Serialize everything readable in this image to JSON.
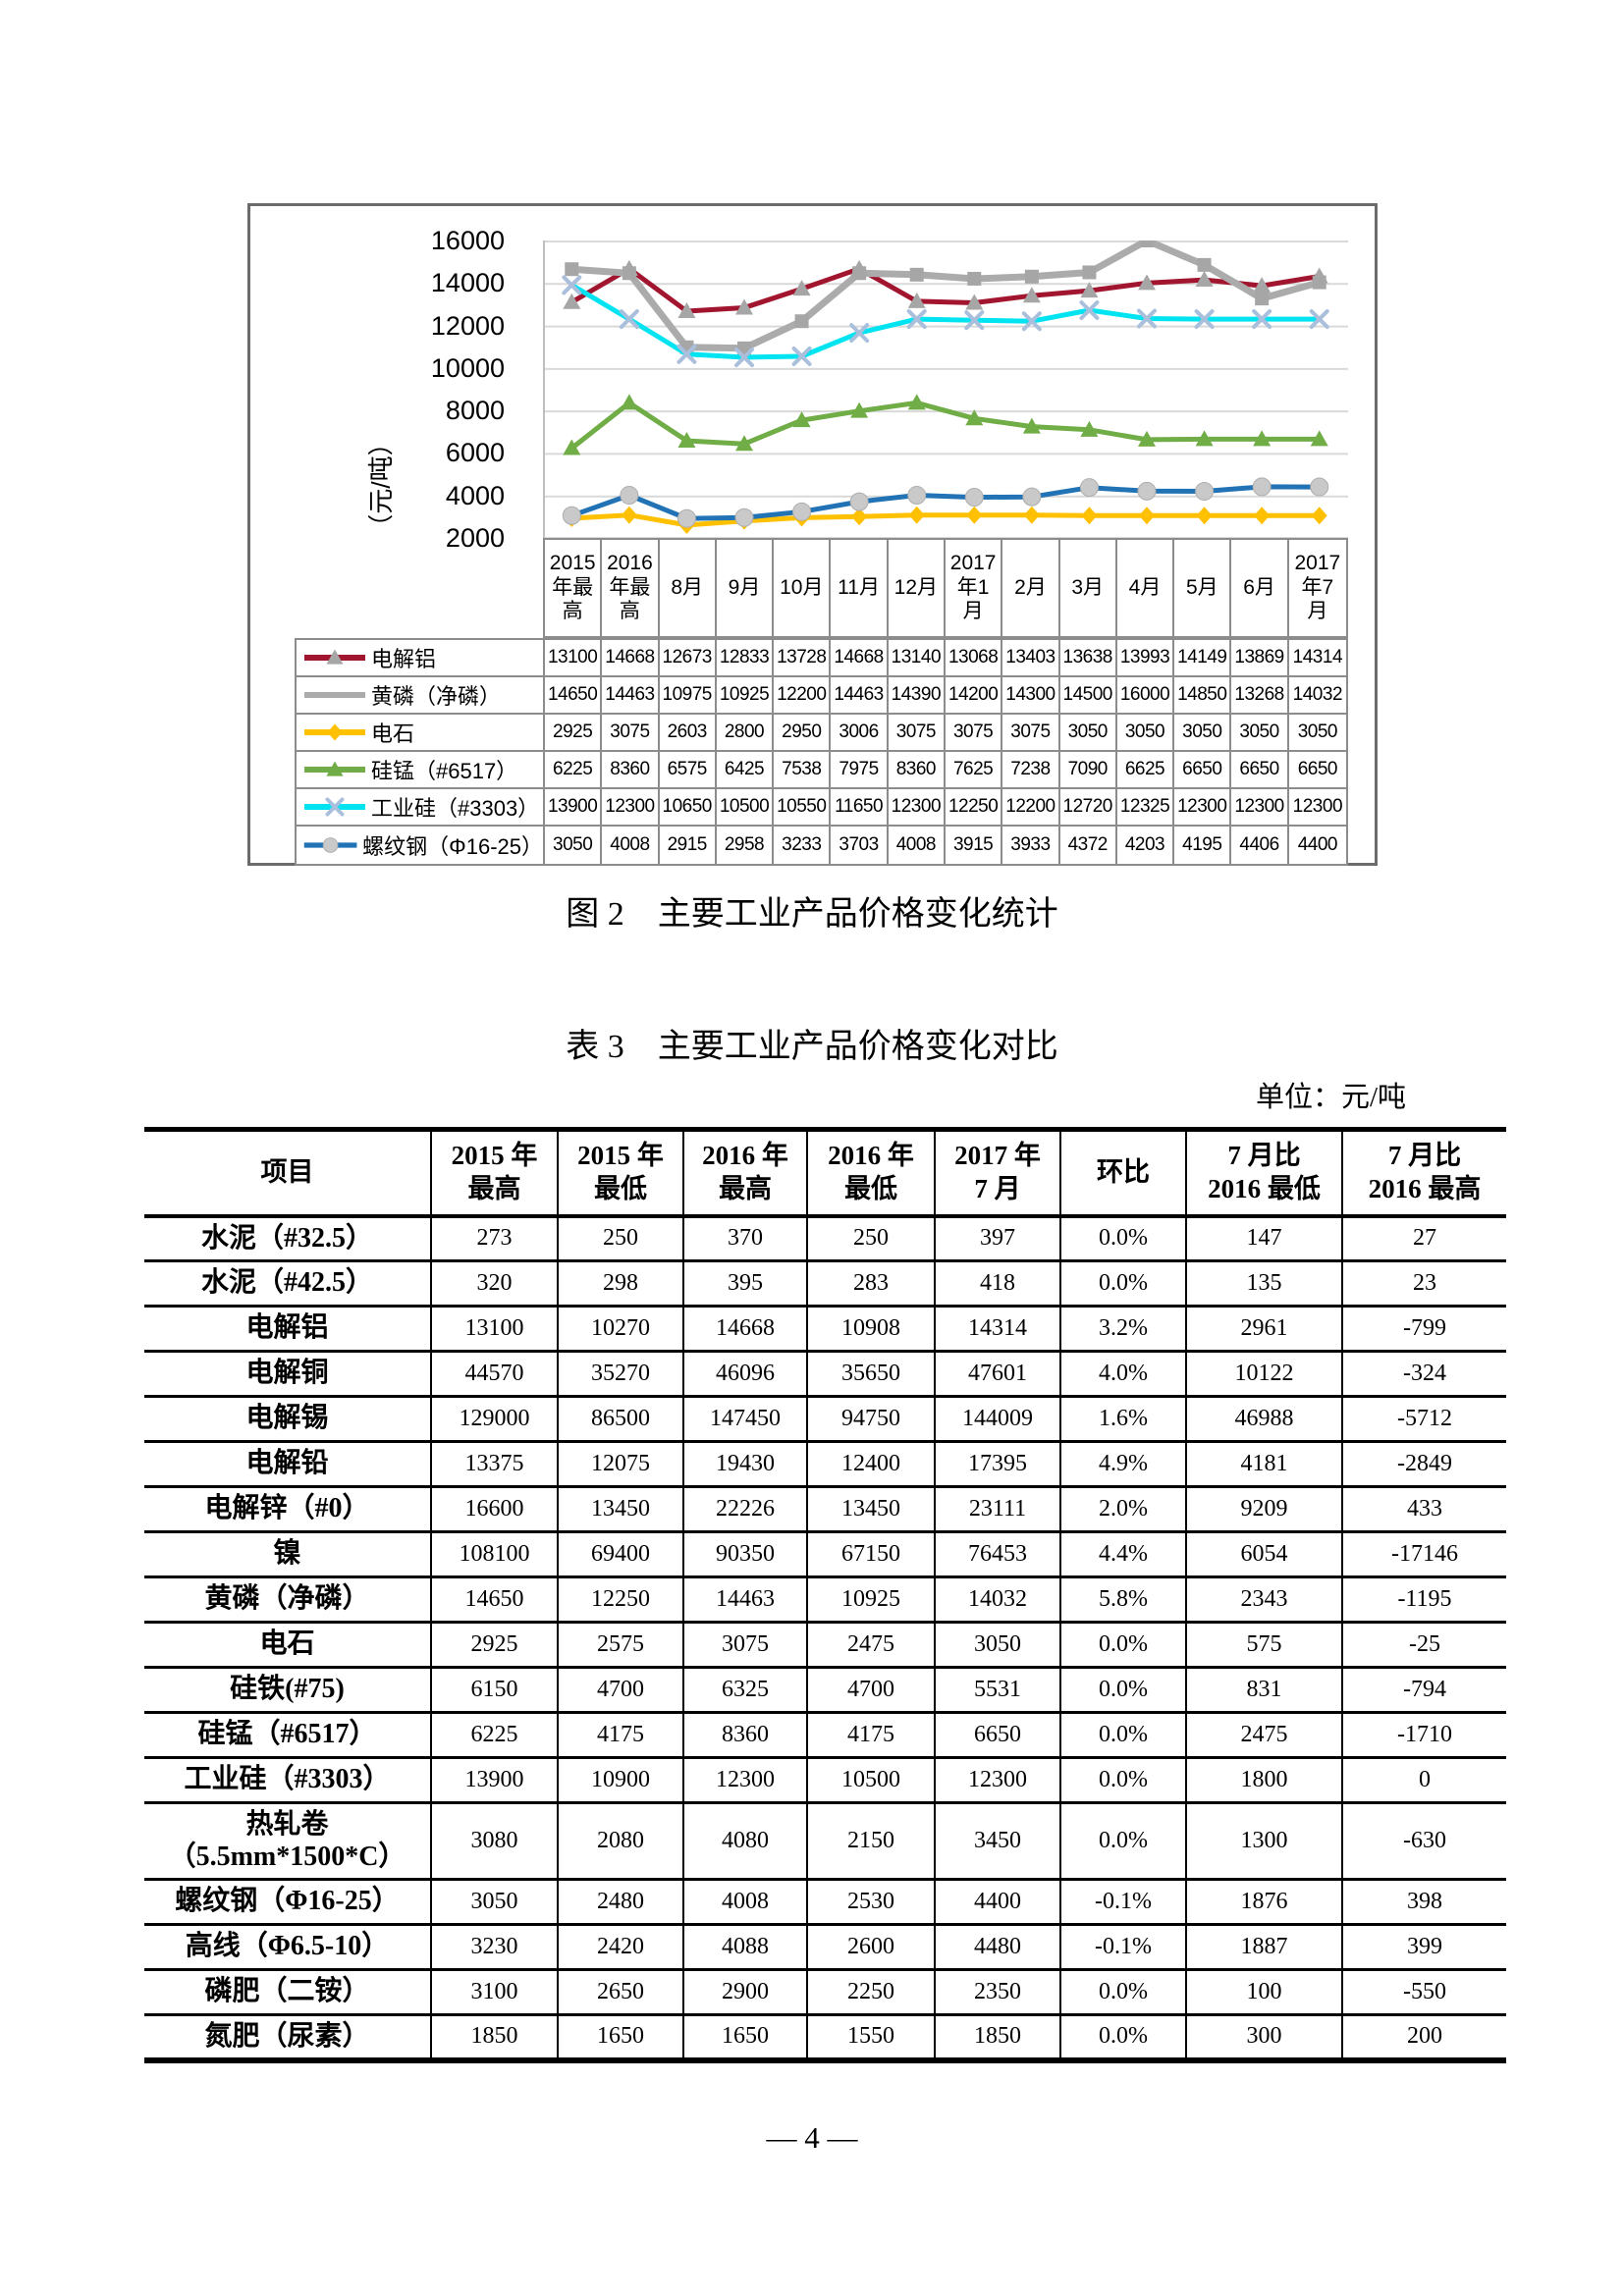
{
  "page": {
    "fig_caption": "图 2　主要工业产品价格变化统计",
    "table_caption": "表 3　主要工业产品价格变化对比",
    "unit_label": "单位：元/吨",
    "page_number": "— 4 —"
  },
  "chart_data": {
    "type": "line",
    "ylabel": "（元/吨）",
    "ylim": [
      2000,
      16000
    ],
    "yticks": [
      2000,
      4000,
      6000,
      8000,
      10000,
      12000,
      14000,
      16000
    ],
    "grid": true,
    "grid_color": "#d9d9d9",
    "axis_line_color": "#bfbfbf",
    "legend_position": "table-left",
    "categories": [
      "2015年最高",
      "2016年最高",
      "8月",
      "9月",
      "10月",
      "11月",
      "12月",
      "2017年1月",
      "2月",
      "3月",
      "4月",
      "5月",
      "6月",
      "2017年7月"
    ],
    "series": [
      {
        "name": "电解铝",
        "color": "#a2152f",
        "marker": "triangle",
        "marker_color": "#a6a6a6",
        "values": [
          13100,
          14668,
          12673,
          12833,
          13728,
          14668,
          13140,
          13068,
          13403,
          13638,
          13993,
          14149,
          13869,
          14314
        ]
      },
      {
        "name": "黄磷（净磷）",
        "color": "#ababab",
        "marker": "square",
        "marker_color": "#a6a6a6",
        "legend_marker": "none",
        "values": [
          14650,
          14463,
          10975,
          10925,
          12200,
          14463,
          14390,
          14200,
          14300,
          14500,
          16000,
          14850,
          13268,
          14032
        ]
      },
      {
        "name": "电石",
        "color": "#ffc000",
        "marker": "diamond",
        "marker_color": "#ffc000",
        "values": [
          2925,
          3075,
          2603,
          2800,
          2950,
          3006,
          3075,
          3075,
          3075,
          3050,
          3050,
          3050,
          3050,
          3050
        ]
      },
      {
        "name": "硅锰（#6517）",
        "color": "#70ad47",
        "marker": "triangle",
        "marker_color": "#70ad47",
        "values": [
          6225,
          8360,
          6575,
          6425,
          7538,
          7975,
          8360,
          7625,
          7238,
          7090,
          6625,
          6650,
          6650,
          6650
        ]
      },
      {
        "name": "工业硅（#3303）",
        "color": "#00e4f2",
        "marker": "x",
        "marker_color": "#a9bfdc",
        "values": [
          13900,
          12300,
          10650,
          10500,
          10550,
          11650,
          12300,
          12250,
          12200,
          12720,
          12325,
          12300,
          12300,
          12300
        ]
      },
      {
        "name": "螺纹钢（Φ16-25）",
        "color": "#2173b5",
        "marker": "circle",
        "marker_color": "#c9c9c9",
        "values": [
          3050,
          4008,
          2915,
          2958,
          3233,
          3703,
          4008,
          3915,
          3933,
          4372,
          4203,
          4195,
          4406,
          4400
        ]
      }
    ]
  },
  "price_table": {
    "headers": [
      "项目",
      "2015 年\n最高",
      "2015 年\n最低",
      "2016 年\n最高",
      "2016 年\n最低",
      "2017 年\n7 月",
      "环比",
      "7 月比\n2016 最低",
      "7 月比\n2016 最高"
    ],
    "rows": [
      [
        "水泥（#32.5）",
        "273",
        "250",
        "370",
        "250",
        "397",
        "0.0%",
        "147",
        "27"
      ],
      [
        "水泥（#42.5）",
        "320",
        "298",
        "395",
        "283",
        "418",
        "0.0%",
        "135",
        "23"
      ],
      [
        "电解铝",
        "13100",
        "10270",
        "14668",
        "10908",
        "14314",
        "3.2%",
        "2961",
        "-799"
      ],
      [
        "电解铜",
        "44570",
        "35270",
        "46096",
        "35650",
        "47601",
        "4.0%",
        "10122",
        "-324"
      ],
      [
        "电解锡",
        "129000",
        "86500",
        "147450",
        "94750",
        "144009",
        "1.6%",
        "46988",
        "-5712"
      ],
      [
        "电解铅",
        "13375",
        "12075",
        "19430",
        "12400",
        "17395",
        "4.9%",
        "4181",
        "-2849"
      ],
      [
        "电解锌（#0）",
        "16600",
        "13450",
        "22226",
        "13450",
        "23111",
        "2.0%",
        "9209",
        "433"
      ],
      [
        "镍",
        "108100",
        "69400",
        "90350",
        "67150",
        "76453",
        "4.4%",
        "6054",
        "-17146"
      ],
      [
        "黄磷（净磷）",
        "14650",
        "12250",
        "14463",
        "10925",
        "14032",
        "5.8%",
        "2343",
        "-1195"
      ],
      [
        "电石",
        "2925",
        "2575",
        "3075",
        "2475",
        "3050",
        "0.0%",
        "575",
        "-25"
      ],
      [
        "硅铁(#75)",
        "6150",
        "4700",
        "6325",
        "4700",
        "5531",
        "0.0%",
        "831",
        "-794"
      ],
      [
        "硅锰（#6517）",
        "6225",
        "4175",
        "8360",
        "4175",
        "6650",
        "0.0%",
        "2475",
        "-1710"
      ],
      [
        "工业硅（#3303）",
        "13900",
        "10900",
        "12300",
        "10500",
        "12300",
        "0.0%",
        "1800",
        "0"
      ],
      [
        "热轧卷\n（5.5mm*1500*C）",
        "3080",
        "2080",
        "4080",
        "2150",
        "3450",
        "0.0%",
        "1300",
        "-630"
      ],
      [
        "螺纹钢（Φ16-25）",
        "3050",
        "2480",
        "4008",
        "2530",
        "4400",
        "-0.1%",
        "1876",
        "398"
      ],
      [
        "高线（Φ6.5-10）",
        "3230",
        "2420",
        "4088",
        "2600",
        "4480",
        "-0.1%",
        "1887",
        "399"
      ],
      [
        "磷肥（二铵）",
        "3100",
        "2650",
        "2900",
        "2250",
        "2350",
        "0.0%",
        "100",
        "-550"
      ],
      [
        "氮肥（尿素）",
        "1850",
        "1650",
        "1650",
        "1550",
        "1850",
        "0.0%",
        "300",
        "200"
      ]
    ]
  }
}
